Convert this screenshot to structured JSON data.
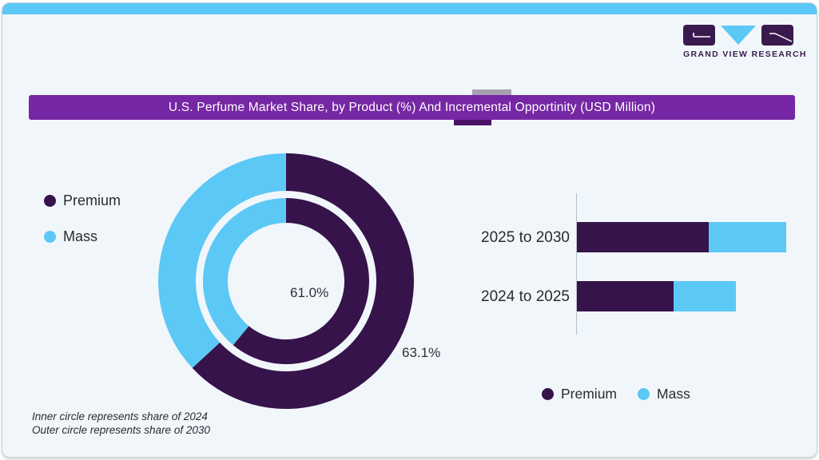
{
  "brand": {
    "name": "GRAND VIEW RESEARCH"
  },
  "header": {
    "title": "U.S. Perfume Market Share, by Product (%) And Incremental Opportinity (USD Million)"
  },
  "colors": {
    "premium": "#36134B",
    "mass": "#5BC8F5",
    "ribbon": "#7627A4",
    "ribbon_fold": "#4B1268",
    "card_bg": "#F1F6FA",
    "top_strip": "#5BC8F5",
    "axis": "#B9C2C9",
    "text": "#2B2B33",
    "logo_purple": "#3A1A4E"
  },
  "donut_legend": [
    {
      "label": "Premium"
    },
    {
      "label": "Mass"
    }
  ],
  "donut_labels": {
    "inner": "61.0%",
    "outer": "63.1%"
  },
  "footnotes": [
    "Inner circle represents share of 2024",
    "Outer circle represents share of 2030"
  ],
  "bar_legend": [
    {
      "label": "Premium"
    },
    {
      "label": "Mass"
    }
  ],
  "chart_data": [
    {
      "type": "pie",
      "subtype": "double_donut",
      "title": "U.S. perfume market share, by product (%)",
      "legend": [
        "Premium",
        "Mass"
      ],
      "legend_position": "left",
      "rings": [
        {
          "name": "inner (share of 2024)",
          "segments": [
            {
              "label": "Premium",
              "value": 61.0
            },
            {
              "label": "Mass",
              "value": 39.0
            }
          ]
        },
        {
          "name": "outer (share of 2030)",
          "segments": [
            {
              "label": "Premium",
              "value": 63.1
            },
            {
              "label": "Mass",
              "value": 36.9
            }
          ]
        }
      ],
      "labels_shown": [
        "61.0%",
        "63.1%"
      ],
      "start_angle": "12 o'clock, clockwise, Premium first"
    },
    {
      "type": "bar",
      "orientation": "horizontal",
      "stacked": true,
      "title": "Incremental opportunity (USD Million)",
      "categories": [
        "2025 to 2030",
        "2024 to 2025"
      ],
      "series": [
        {
          "name": "Premium",
          "values": [
            165,
            121
          ]
        },
        {
          "name": "Mass",
          "values": [
            97,
            78
          ]
        }
      ],
      "units": "relative length (axis values not labeled in source)",
      "legend": [
        "Premium",
        "Mass"
      ],
      "legend_position": "bottom",
      "grid": false
    }
  ]
}
